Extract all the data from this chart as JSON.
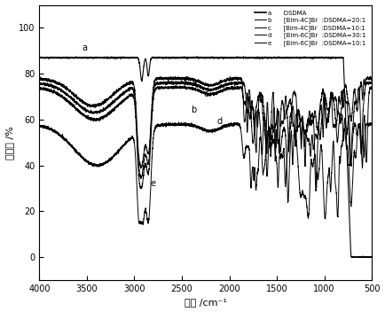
{
  "title": "",
  "xlabel": "波数 /cm⁻¹",
  "ylabel": "透光率 /%",
  "xlim": [
    4000,
    500
  ],
  "ylim": [
    -10,
    110
  ],
  "yticks": [
    0,
    20,
    40,
    60,
    80,
    100
  ],
  "xticks": [
    4000,
    3500,
    3000,
    2500,
    2000,
    1500,
    1000,
    500
  ],
  "legend_a": "a      DSDMA",
  "legend_b": "b      [Bim-4C]Br  :DSDMA=20:1",
  "legend_c": "c      [Bim-4C]Br  :DSDMA=10:1",
  "legend_d": "d      [Bim-6C]Br  :DSDMA=30:1",
  "legend_e": "e      [Bim-6C]Br  :DSDMA=10:1",
  "background_color": "white"
}
